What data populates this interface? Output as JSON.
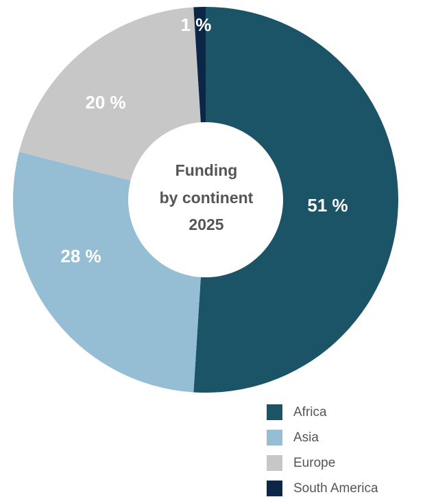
{
  "chart_data": {
    "type": "pie",
    "donut": true,
    "center_title_lines": [
      "Funding",
      "by continent",
      "2025"
    ],
    "categories": [
      "Africa",
      "Asia",
      "Europe",
      "South America"
    ],
    "values": [
      51,
      28,
      20,
      1
    ],
    "value_labels": [
      "51 %",
      "28 %",
      "20 %",
      "1 %"
    ],
    "colors": [
      "#1c5467",
      "#95bdd4",
      "#c7c7c7",
      "#0b2646"
    ],
    "start": "top",
    "direction": "clockwise",
    "legend": {
      "position": "bottom-right",
      "entries": [
        "Africa",
        "Asia",
        "Europe",
        "South America"
      ]
    }
  }
}
